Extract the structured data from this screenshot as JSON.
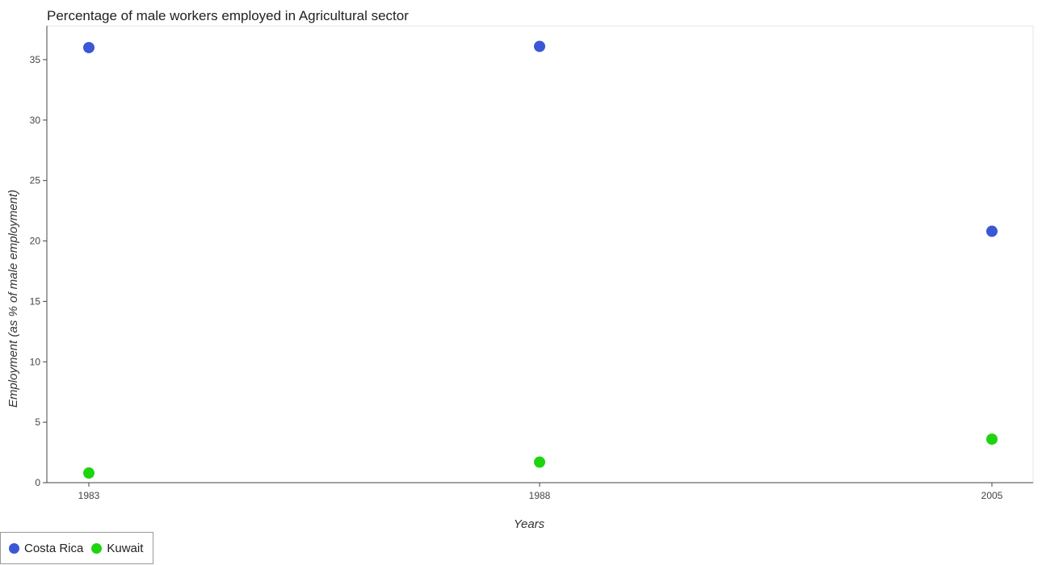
{
  "chart_data": {
    "type": "scatter",
    "title": "Percentage of male workers employed in Agricultural sector",
    "xlabel": "Years",
    "ylabel": "Employment (as % of male employment)",
    "categories": [
      "1983",
      "1988",
      "2005"
    ],
    "ylim": [
      0,
      37.8
    ],
    "yticks": [
      0,
      5,
      10,
      15,
      20,
      25,
      30,
      35
    ],
    "grid": false,
    "legend_position": "bottom-left",
    "series": [
      {
        "name": "Costa Rica",
        "color": "#3a57d6",
        "values": [
          36.0,
          36.1,
          20.8
        ]
      },
      {
        "name": "Kuwait",
        "color": "#1ed40f",
        "values": [
          0.8,
          1.7,
          3.6
        ]
      }
    ]
  }
}
